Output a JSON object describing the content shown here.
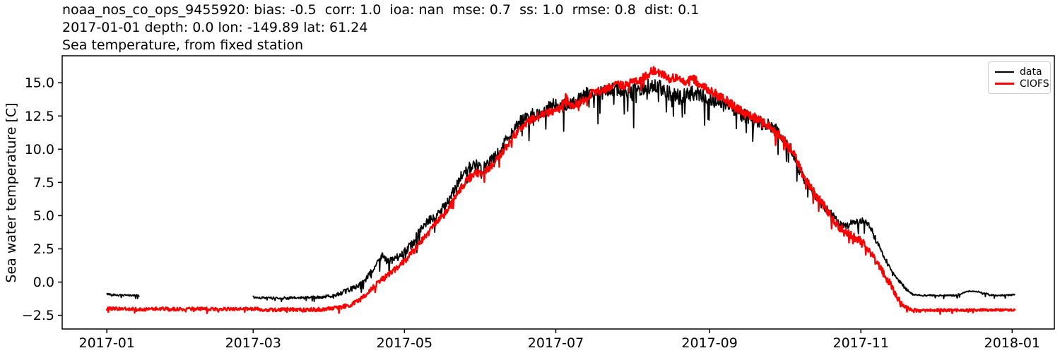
{
  "header": {
    "line1": "noaa_nos_co_ops_9455920: bias: -0.5  corr: 1.0  ioa: nan  mse: 0.7  ss: 1.0  rmse: 0.8  dist: 0.1",
    "line2": "2017-01-01 depth: 0.0 lon: -149.89 lat: 61.24",
    "line3": "Sea temperature, from fixed station",
    "station_id": "noaa_nos_co_ops_9455920",
    "stats": {
      "bias": -0.5,
      "corr": 1.0,
      "ioa": "nan",
      "mse": 0.7,
      "ss": 1.0,
      "rmse": 0.8,
      "dist": 0.1
    },
    "meta": {
      "date": "2017-01-01",
      "depth": 0.0,
      "lon": -149.89,
      "lat": 61.24
    }
  },
  "labels": {
    "ylabel": "Sea water temperature [C]"
  },
  "legend": {
    "position": "upper right",
    "entries": [
      {
        "label": "data",
        "color": "#000000"
      },
      {
        "label": "CIOFS",
        "color": "#ff0000"
      }
    ]
  },
  "chart_data": {
    "type": "line",
    "title": "Sea temperature, from fixed station",
    "xlabel": "",
    "ylabel": "Sea water temperature [C]",
    "x_unit": "days since 2017-01-01",
    "xlim": [
      -18,
      382
    ],
    "ylim": [
      -3.53,
      17.03
    ],
    "grid": false,
    "legend_position": "upper right",
    "xticks": [
      {
        "day": 0,
        "label": "2017-01"
      },
      {
        "day": 59,
        "label": "2017-03"
      },
      {
        "day": 120,
        "label": "2017-05"
      },
      {
        "day": 181,
        "label": "2017-07"
      },
      {
        "day": 243,
        "label": "2017-09"
      },
      {
        "day": 304,
        "label": "2017-11"
      },
      {
        "day": 365,
        "label": "2018-01"
      }
    ],
    "yticks": [
      {
        "v": -2.5,
        "label": "−2.5"
      },
      {
        "v": 0.0,
        "label": "0.0"
      },
      {
        "v": 2.5,
        "label": "2.5"
      },
      {
        "v": 5.0,
        "label": "5.0"
      },
      {
        "v": 7.5,
        "label": "7.5"
      },
      {
        "v": 10.0,
        "label": "10.0"
      },
      {
        "v": 12.5,
        "label": "12.5"
      },
      {
        "v": 15.0,
        "label": "15.0"
      }
    ],
    "series": [
      {
        "name": "data",
        "color": "#000000",
        "linewidth": 1.8,
        "spike_prob": 0.07,
        "spike_mult": 4,
        "noise": [
          [
            0,
            0.07
          ],
          [
            13,
            0.07
          ],
          [
            59,
            0.09
          ],
          [
            90,
            0.12
          ],
          [
            105,
            0.25
          ],
          [
            120,
            0.3
          ],
          [
            140,
            0.4
          ],
          [
            160,
            0.45
          ],
          [
            180,
            0.5
          ],
          [
            200,
            0.55
          ],
          [
            220,
            0.6
          ],
          [
            245,
            0.55
          ],
          [
            265,
            0.5
          ],
          [
            280,
            0.4
          ],
          [
            295,
            0.3
          ],
          [
            308,
            0.25
          ],
          [
            318,
            0.15
          ],
          [
            326,
            0.06
          ],
          [
            366,
            0.06
          ]
        ],
        "segments": [
          [
            [
              0,
              -0.9
            ],
            [
              3,
              -0.95
            ],
            [
              5,
              -1.0
            ],
            [
              9,
              -1.0
            ],
            [
              13,
              -1.0
            ]
          ],
          [
            [
              59,
              -1.15
            ],
            [
              65,
              -1.2
            ],
            [
              75,
              -1.2
            ],
            [
              85,
              -1.15
            ],
            [
              90,
              -1.05
            ],
            [
              94,
              -0.85
            ],
            [
              98,
              -0.55
            ],
            [
              102,
              -0.2
            ],
            [
              105,
              0.3
            ],
            [
              107,
              0.85
            ],
            [
              109,
              1.4
            ],
            [
              111,
              2.1
            ],
            [
              113,
              1.5
            ],
            [
              116,
              1.7
            ],
            [
              120,
              2.25
            ],
            [
              124,
              3.1
            ],
            [
              127,
              4.2
            ],
            [
              131,
              4.8
            ],
            [
              135,
              5.4
            ],
            [
              138,
              6.2
            ],
            [
              141,
              7.2
            ],
            [
              143,
              8.0
            ],
            [
              146,
              8.6
            ],
            [
              149,
              8.8
            ],
            [
              151,
              8.4
            ],
            [
              155,
              9.2
            ],
            [
              158,
              9.7
            ],
            [
              161,
              10.7
            ],
            [
              163,
              11.2
            ],
            [
              166,
              11.9
            ],
            [
              168,
              12.3
            ],
            [
              171,
              12.6
            ],
            [
              174,
              12.5
            ],
            [
              177,
              13.0
            ],
            [
              180,
              13.3
            ],
            [
              183,
              13.2
            ],
            [
              186,
              13.4
            ],
            [
              190,
              13.7
            ],
            [
              193,
              14.1
            ],
            [
              196,
              14.4
            ],
            [
              199,
              14.2
            ],
            [
              202,
              14.5
            ],
            [
              205,
              14.7
            ],
            [
              208,
              14.2
            ],
            [
              211,
              14.4
            ],
            [
              214,
              14.5
            ],
            [
              217,
              14.6
            ],
            [
              220,
              14.8
            ],
            [
              223,
              14.6
            ],
            [
              226,
              14.3
            ],
            [
              229,
              14.0
            ],
            [
              232,
              13.9
            ],
            [
              235,
              14.2
            ],
            [
              238,
              14.2
            ],
            [
              241,
              14.0
            ],
            [
              244,
              13.8
            ],
            [
              247,
              13.5
            ],
            [
              250,
              13.3
            ],
            [
              253,
              13.0
            ],
            [
              256,
              12.6
            ],
            [
              259,
              12.4
            ],
            [
              262,
              12.1
            ],
            [
              265,
              11.9
            ],
            [
              268,
              11.7
            ],
            [
              271,
              11.3
            ],
            [
              273,
              10.8
            ],
            [
              275,
              10.3
            ],
            [
              277,
              9.5
            ],
            [
              279,
              8.5
            ],
            [
              281,
              7.8
            ],
            [
              283,
              7.4
            ],
            [
              285,
              6.7
            ],
            [
              288,
              5.9
            ],
            [
              291,
              5.3
            ],
            [
              294,
              4.7
            ],
            [
              297,
              4.2
            ],
            [
              300,
              4.4
            ],
            [
              303,
              4.5
            ],
            [
              305,
              4.6
            ],
            [
              307,
              4.5
            ],
            [
              309,
              3.6
            ],
            [
              311,
              2.8
            ],
            [
              313,
              2.0
            ],
            [
              316,
              1.0
            ],
            [
              319,
              0.2
            ],
            [
              322,
              -0.5
            ],
            [
              325,
              -0.95
            ],
            [
              328,
              -1.0
            ],
            [
              335,
              -1.0
            ],
            [
              342,
              -1.0
            ],
            [
              345,
              -0.85
            ],
            [
              347,
              -0.7
            ],
            [
              350,
              -0.68
            ],
            [
              353,
              -0.8
            ],
            [
              356,
              -0.95
            ],
            [
              358,
              -1.0
            ],
            [
              362,
              -1.0
            ],
            [
              366,
              -0.95
            ]
          ]
        ]
      },
      {
        "name": "CIOFS",
        "color": "#ff0000",
        "linewidth": 2.4,
        "spike_prob": 0.05,
        "spike_mult": 2.2,
        "noise": [
          [
            0,
            0.12
          ],
          [
            60,
            0.13
          ],
          [
            90,
            0.15
          ],
          [
            105,
            0.2
          ],
          [
            120,
            0.25
          ],
          [
            150,
            0.3
          ],
          [
            180,
            0.3
          ],
          [
            210,
            0.3
          ],
          [
            240,
            0.33
          ],
          [
            270,
            0.35
          ],
          [
            300,
            0.32
          ],
          [
            316,
            0.3
          ],
          [
            324,
            0.12
          ],
          [
            366,
            0.08
          ]
        ],
        "segments": [
          [
            [
              0,
              -2.0
            ],
            [
              8,
              -2.0
            ],
            [
              15,
              -2.05
            ],
            [
              22,
              -2.0
            ],
            [
              30,
              -2.05
            ],
            [
              38,
              -2.0
            ],
            [
              45,
              -2.05
            ],
            [
              52,
              -2.0
            ],
            [
              59,
              -2.0
            ],
            [
              66,
              -2.1
            ],
            [
              73,
              -2.05
            ],
            [
              80,
              -2.1
            ],
            [
              86,
              -2.05
            ],
            [
              90,
              -2.0
            ],
            [
              94,
              -1.9
            ],
            [
              98,
              -1.7
            ],
            [
              102,
              -1.35
            ],
            [
              105,
              -0.9
            ],
            [
              108,
              -0.3
            ],
            [
              111,
              0.2
            ],
            [
              114,
              0.6
            ],
            [
              117,
              1.1
            ],
            [
              120,
              1.6
            ],
            [
              124,
              2.4
            ],
            [
              127,
              3.1
            ],
            [
              131,
              4.0
            ],
            [
              135,
              4.9
            ],
            [
              138,
              5.6
            ],
            [
              141,
              6.5
            ],
            [
              143,
              7.1
            ],
            [
              146,
              7.8
            ],
            [
              149,
              8.2
            ],
            [
              152,
              8.2
            ],
            [
              155,
              8.8
            ],
            [
              158,
              9.4
            ],
            [
              161,
              10.2
            ],
            [
              163,
              10.7
            ],
            [
              166,
              11.4
            ],
            [
              168,
              11.8
            ],
            [
              171,
              12.2
            ],
            [
              174,
              12.5
            ],
            [
              177,
              12.7
            ],
            [
              180,
              12.9
            ],
            [
              183,
              13.1
            ],
            [
              185,
              14.0
            ],
            [
              187,
              13.3
            ],
            [
              190,
              13.4
            ],
            [
              193,
              13.8
            ],
            [
              196,
              14.3
            ],
            [
              199,
              14.4
            ],
            [
              202,
              14.6
            ],
            [
              205,
              14.9
            ],
            [
              208,
              14.8
            ],
            [
              211,
              15.0
            ],
            [
              214,
              15.1
            ],
            [
              217,
              15.5
            ],
            [
              220,
              15.9
            ],
            [
              222,
              16.0
            ],
            [
              224,
              15.6
            ],
            [
              227,
              15.3
            ],
            [
              230,
              15.4
            ],
            [
              233,
              15.1
            ],
            [
              236,
              15.4
            ],
            [
              239,
              14.9
            ],
            [
              242,
              14.5
            ],
            [
              245,
              14.2
            ],
            [
              248,
              13.9
            ],
            [
              251,
              13.5
            ],
            [
              254,
              13.1
            ],
            [
              257,
              12.8
            ],
            [
              260,
              12.5
            ],
            [
              263,
              12.2
            ],
            [
              266,
              11.8
            ],
            [
              269,
              11.4
            ],
            [
              272,
              10.9
            ],
            [
              275,
              10.2
            ],
            [
              277,
              9.6
            ],
            [
              279,
              8.8
            ],
            [
              281,
              7.9
            ],
            [
              283,
              7.3
            ],
            [
              286,
              6.5
            ],
            [
              289,
              5.8
            ],
            [
              292,
              4.9
            ],
            [
              295,
              4.2
            ],
            [
              298,
              3.7
            ],
            [
              301,
              3.4
            ],
            [
              304,
              3.1
            ],
            [
              306,
              2.7
            ],
            [
              308,
              2.2
            ],
            [
              310,
              1.6
            ],
            [
              312,
              1.0
            ],
            [
              314,
              0.4
            ],
            [
              316,
              -0.2
            ],
            [
              318,
              -1.0
            ],
            [
              320,
              -1.5
            ],
            [
              322,
              -1.85
            ],
            [
              324,
              -2.05
            ],
            [
              327,
              -2.15
            ],
            [
              332,
              -2.1
            ],
            [
              340,
              -2.12
            ],
            [
              348,
              -2.1
            ],
            [
              356,
              -2.1
            ],
            [
              366,
              -2.1
            ]
          ]
        ]
      }
    ]
  }
}
